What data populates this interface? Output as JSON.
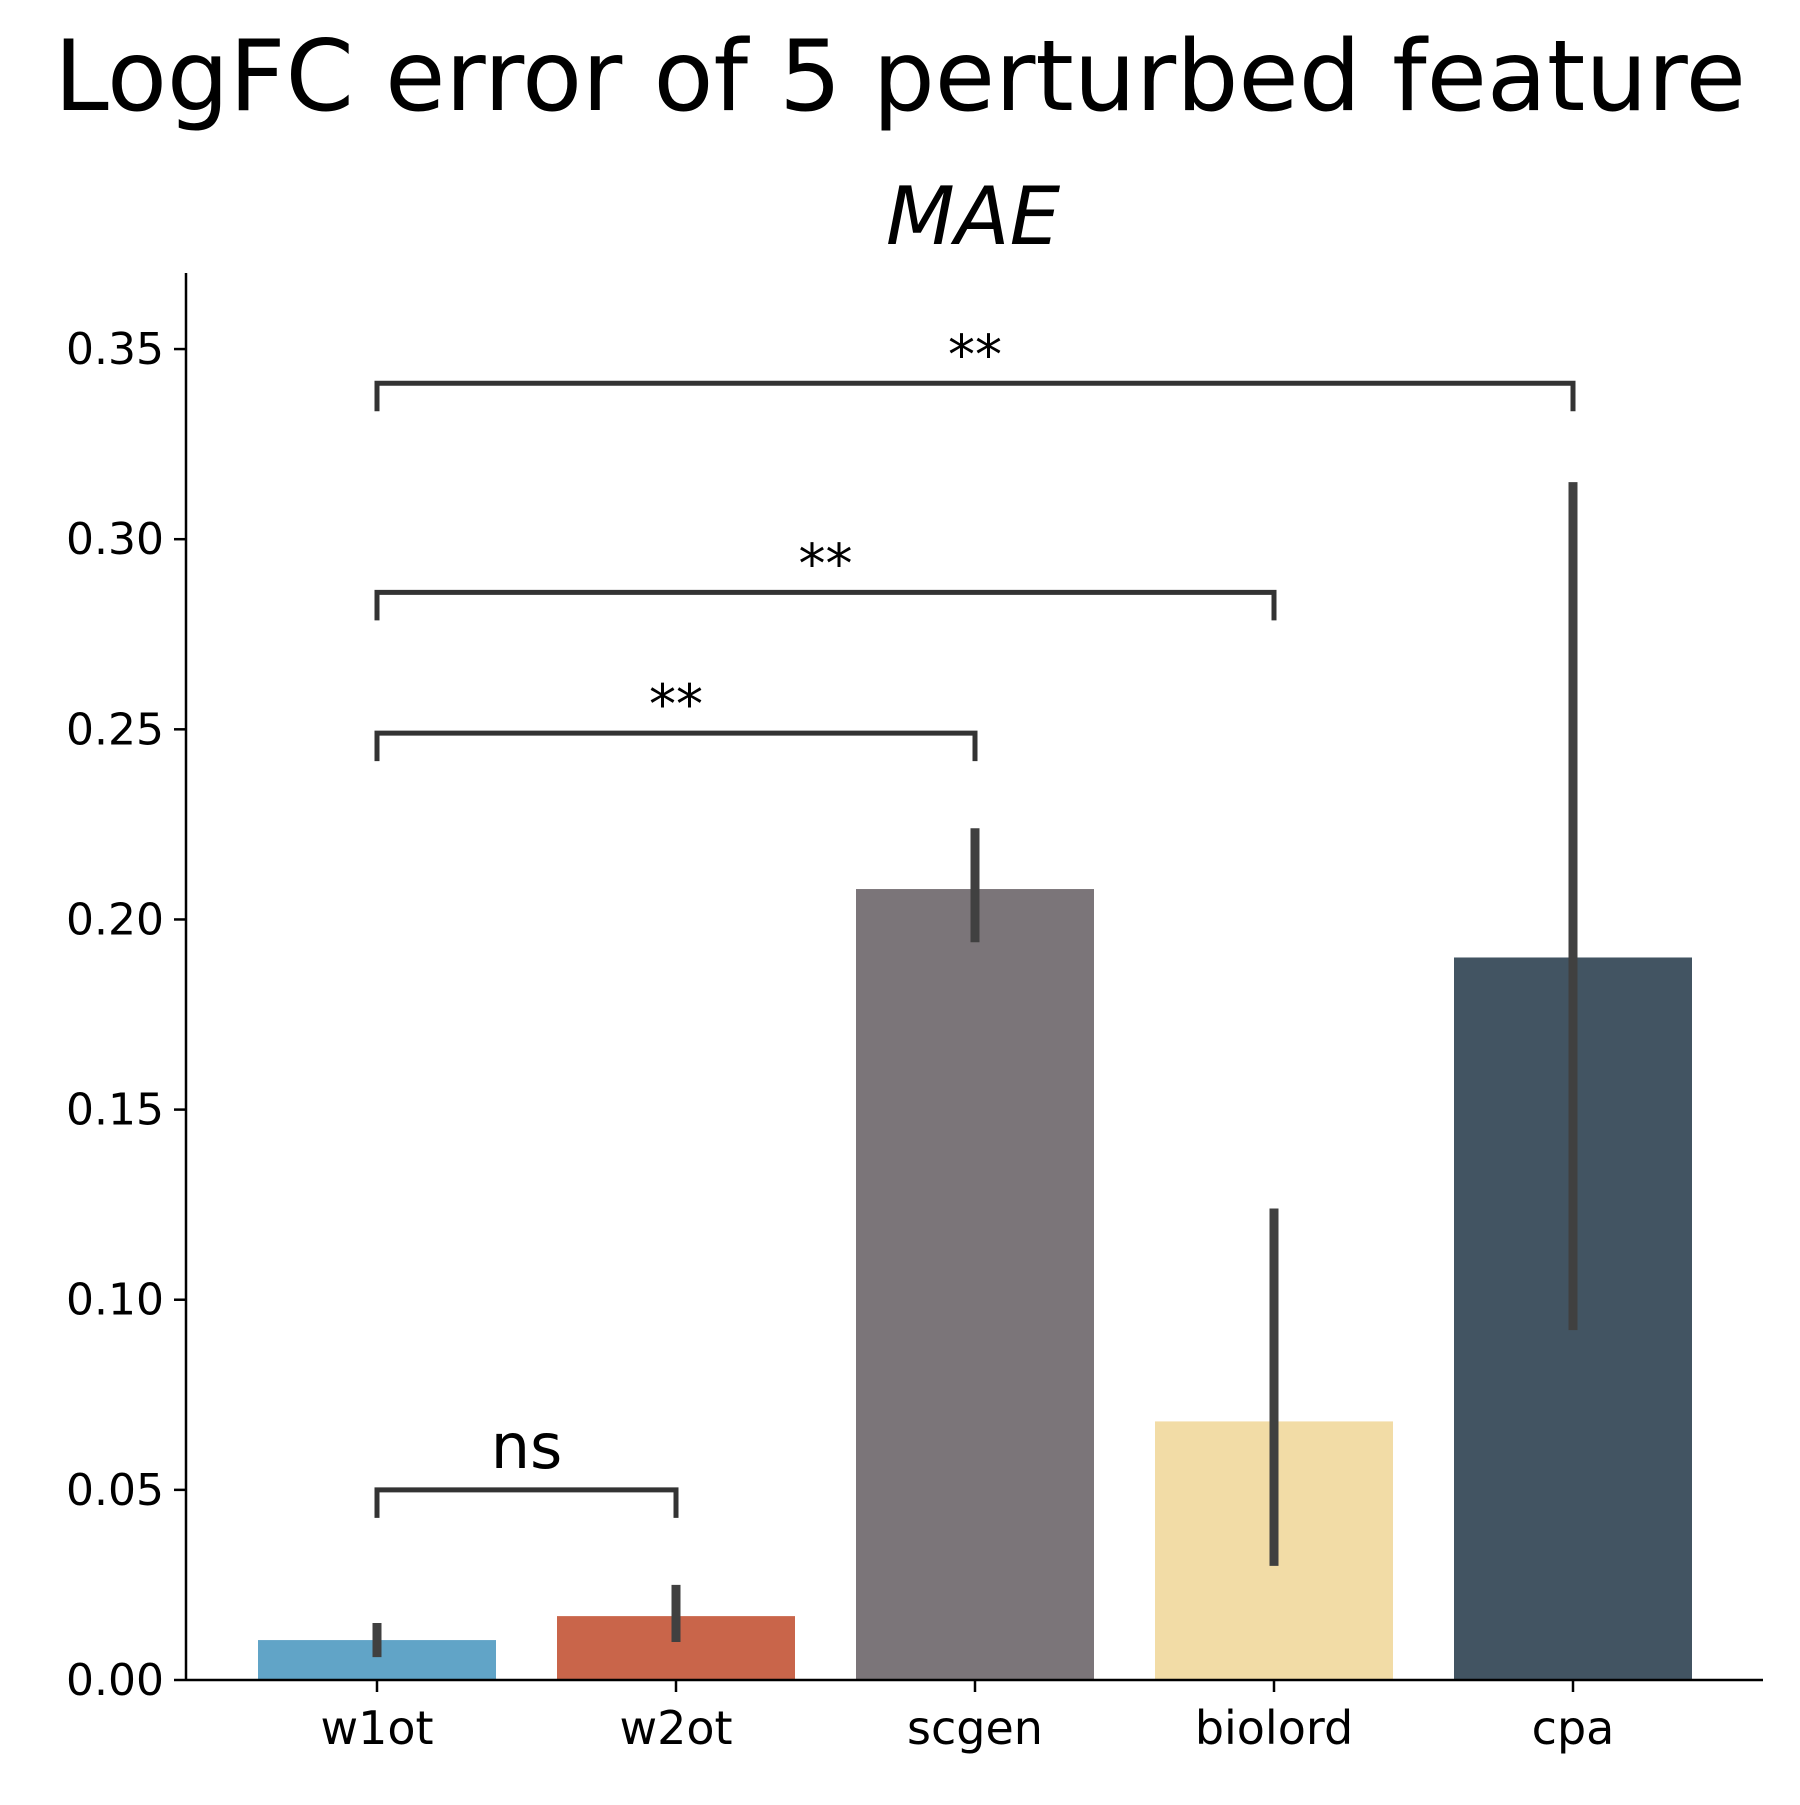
{
  "chart_data": {
    "type": "bar",
    "title": "LogFC error of 5 perturbed feature",
    "subtitle": "MAE",
    "xlabel": "",
    "ylabel": "",
    "ylim": [
      0,
      0.37
    ],
    "yticks": [
      0.0,
      0.05,
      0.1,
      0.15,
      0.2,
      0.25,
      0.3,
      0.35
    ],
    "ytick_labels": [
      "0.00",
      "0.05",
      "0.10",
      "0.15",
      "0.20",
      "0.25",
      "0.30",
      "0.35"
    ],
    "categories": [
      "w1ot",
      "w2ot",
      "scgen",
      "biolord",
      "cpa"
    ],
    "values": [
      0.0105,
      0.0168,
      0.208,
      0.068,
      0.19
    ],
    "error_bars": [
      {
        "low": 0.006,
        "high": 0.015
      },
      {
        "low": 0.01,
        "high": 0.025
      },
      {
        "low": 0.194,
        "high": 0.224
      },
      {
        "low": 0.03,
        "high": 0.124
      },
      {
        "low": 0.092,
        "high": 0.315
      }
    ],
    "colors": [
      "#61a4c7",
      "#c9654a",
      "#7b7579",
      "#f2dca6",
      "#425462"
    ],
    "error_color": "#404040",
    "grid": false,
    "significance": [
      {
        "from": "w1ot",
        "to": "w2ot",
        "label": "ns",
        "y": 0.05
      },
      {
        "from": "w1ot",
        "to": "scgen",
        "label": "**",
        "y": 0.249
      },
      {
        "from": "w1ot",
        "to": "biolord",
        "label": "**",
        "y": 0.286
      },
      {
        "from": "w1ot",
        "to": "cpa",
        "label": "**",
        "y": 0.341
      }
    ]
  }
}
